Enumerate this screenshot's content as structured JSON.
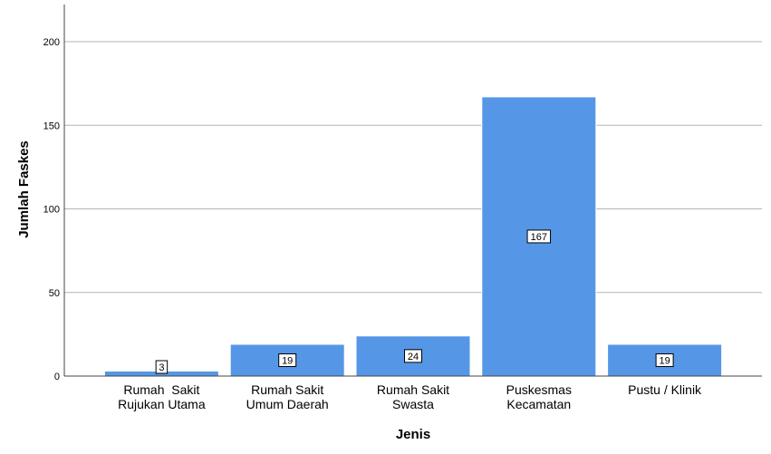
{
  "chart_data": {
    "type": "bar",
    "categories": [
      [
        "Rumah  Sakit",
        "Rujukan Utama"
      ],
      [
        "Rumah Sakit",
        "Umum Daerah"
      ],
      [
        "Rumah Sakit",
        "Swasta"
      ],
      [
        "Puskesmas",
        "Kecamatan"
      ],
      [
        "Pustu / Klinik"
      ]
    ],
    "values": [
      3,
      19,
      24,
      167,
      19
    ],
    "data_labels": [
      "3",
      "19",
      "24",
      "167",
      "19"
    ],
    "xlabel": "Jenis",
    "ylabel": "Jumlah Faskes",
    "ylim": [
      0,
      200
    ],
    "yticks": [
      "0",
      "50",
      "100",
      "150",
      "200"
    ],
    "grid": true,
    "bar_color": "#5597e6",
    "bar_edge_color": "#ffffff",
    "grid_color": "#b4b4b4"
  }
}
